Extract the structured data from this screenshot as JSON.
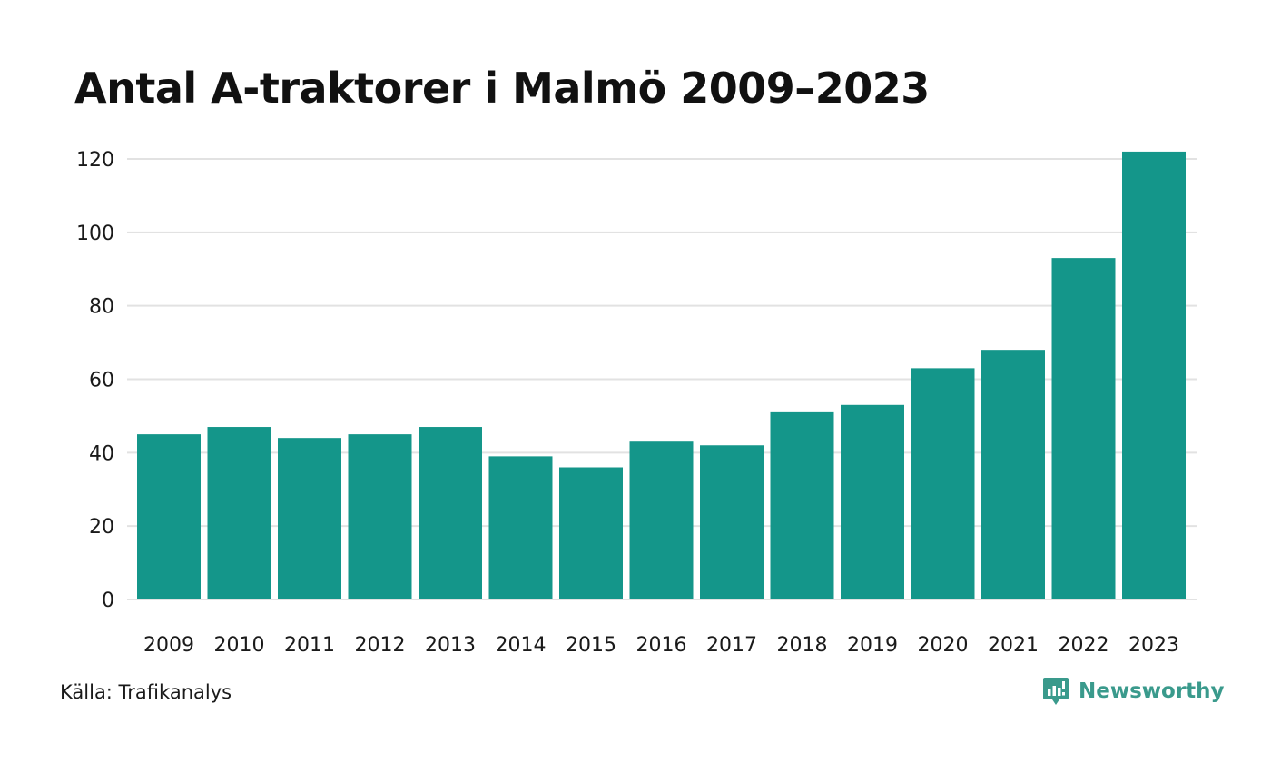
{
  "chart_data": {
    "type": "bar",
    "title": "Antal A-traktorer i Malmö 2009–2023",
    "categories": [
      "2009",
      "2010",
      "2011",
      "2012",
      "2013",
      "2014",
      "2015",
      "2016",
      "2017",
      "2018",
      "2019",
      "2020",
      "2021",
      "2022",
      "2023"
    ],
    "values": [
      45,
      47,
      44,
      45,
      47,
      39,
      36,
      43,
      42,
      51,
      53,
      63,
      68,
      93,
      122
    ],
    "xlabel": "",
    "ylabel": "",
    "ylim": [
      0,
      120
    ],
    "yticks": [
      0,
      20,
      40,
      60,
      80,
      100,
      120
    ],
    "grid": true,
    "bar_color": "#14968a"
  },
  "footer": {
    "source": "Källa: Trafikanalys",
    "brand": "Newsworthy",
    "brand_icon": "newsworthy-logo-icon",
    "brand_color": "#3a9a8c"
  }
}
